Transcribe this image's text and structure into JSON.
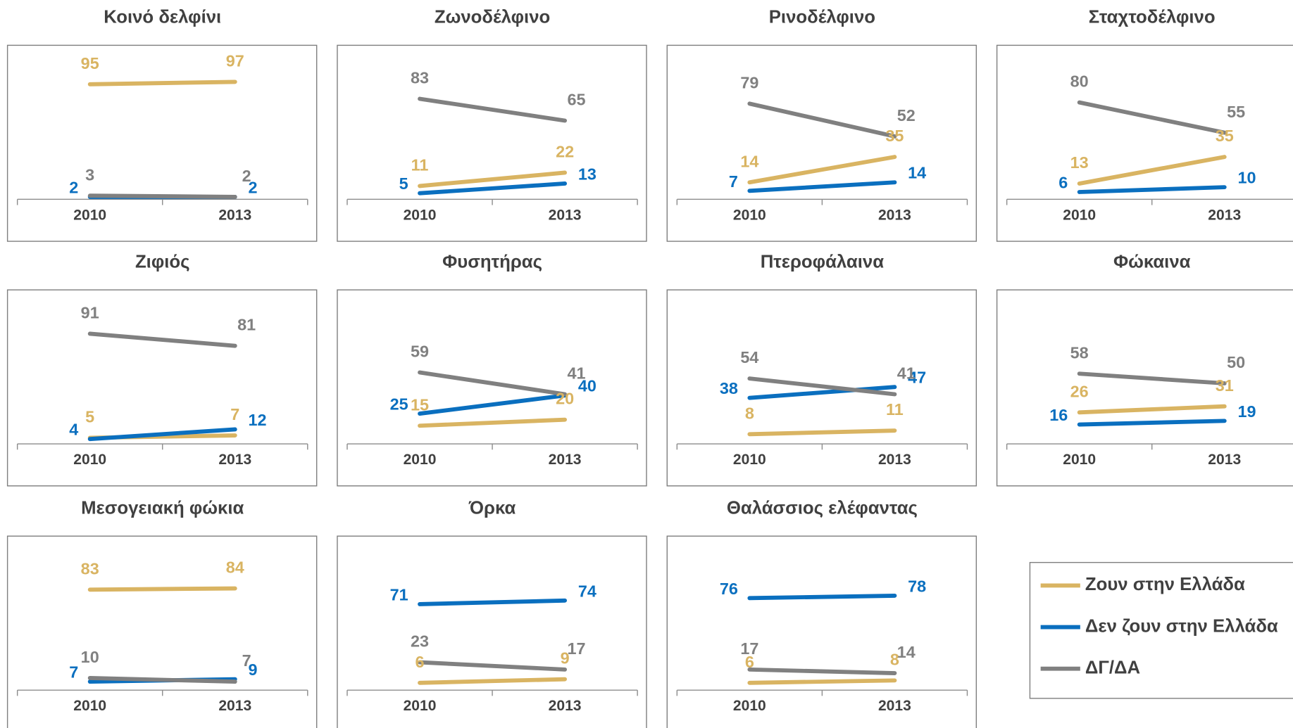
{
  "chart_data": [
    {
      "type": "line",
      "title": "Κοινό δελφίνι",
      "categories": [
        "2010",
        "2013"
      ],
      "ylim": [
        0,
        100
      ],
      "series": [
        {
          "name": "Ζουν στην Ελλάδα",
          "color": "#d9b462",
          "values": [
            95,
            97
          ]
        },
        {
          "name": "Δεν ζουν στην Ελλάδα",
          "color": "#0a6fbf",
          "values": [
            2,
            2
          ]
        },
        {
          "name": "ΔΓ/ΔΑ",
          "color": "#808080",
          "values": [
            3,
            2
          ]
        }
      ]
    },
    {
      "type": "line",
      "title": "Ζωνοδέλφινο",
      "categories": [
        "2010",
        "2013"
      ],
      "ylim": [
        0,
        100
      ],
      "series": [
        {
          "name": "Ζουν στην Ελλάδα",
          "color": "#d9b462",
          "values": [
            11,
            22
          ]
        },
        {
          "name": "Δεν ζουν στην Ελλάδα",
          "color": "#0a6fbf",
          "values": [
            5,
            13
          ]
        },
        {
          "name": "ΔΓ/ΔΑ",
          "color": "#808080",
          "values": [
            83,
            65
          ]
        }
      ]
    },
    {
      "type": "line",
      "title": "Ρινοδέλφινο",
      "categories": [
        "2010",
        "2013"
      ],
      "ylim": [
        0,
        100
      ],
      "series": [
        {
          "name": "Ζουν στην Ελλάδα",
          "color": "#d9b462",
          "values": [
            14,
            35
          ]
        },
        {
          "name": "Δεν ζουν στην Ελλάδα",
          "color": "#0a6fbf",
          "values": [
            7,
            14
          ]
        },
        {
          "name": "ΔΓ/ΔΑ",
          "color": "#808080",
          "values": [
            79,
            52
          ]
        }
      ]
    },
    {
      "type": "line",
      "title": "Σταχτοδέλφινο",
      "categories": [
        "2010",
        "2013"
      ],
      "ylim": [
        0,
        100
      ],
      "series": [
        {
          "name": "Ζουν στην Ελλάδα",
          "color": "#d9b462",
          "values": [
            13,
            35
          ]
        },
        {
          "name": "Δεν ζουν στην Ελλάδα",
          "color": "#0a6fbf",
          "values": [
            6,
            10
          ]
        },
        {
          "name": "ΔΓ/ΔΑ",
          "color": "#808080",
          "values": [
            80,
            55
          ]
        }
      ]
    },
    {
      "type": "line",
      "title": "Ζιφιός",
      "categories": [
        "2010",
        "2013"
      ],
      "ylim": [
        0,
        100
      ],
      "series": [
        {
          "name": "Ζουν στην Ελλάδα",
          "color": "#d9b462",
          "values": [
            5,
            7
          ]
        },
        {
          "name": "Δεν ζουν στην Ελλάδα",
          "color": "#0a6fbf",
          "values": [
            4,
            12
          ]
        },
        {
          "name": "ΔΓ/ΔΑ",
          "color": "#808080",
          "values": [
            91,
            81
          ]
        }
      ]
    },
    {
      "type": "line",
      "title": "Φυσητήρας",
      "categories": [
        "2010",
        "2013"
      ],
      "ylim": [
        0,
        100
      ],
      "series": [
        {
          "name": "Ζουν στην Ελλάδα",
          "color": "#d9b462",
          "values": [
            15,
            20
          ]
        },
        {
          "name": "Δεν ζουν στην Ελλάδα",
          "color": "#0a6fbf",
          "values": [
            25,
            40
          ]
        },
        {
          "name": "ΔΓ/ΔΑ",
          "color": "#808080",
          "values": [
            59,
            41
          ]
        }
      ]
    },
    {
      "type": "line",
      "title": "Πτεροφάλαινα",
      "categories": [
        "2010",
        "2013"
      ],
      "ylim": [
        0,
        100
      ],
      "series": [
        {
          "name": "Ζουν στην Ελλάδα",
          "color": "#d9b462",
          "values": [
            8,
            11
          ]
        },
        {
          "name": "Δεν ζουν στην Ελλάδα",
          "color": "#0a6fbf",
          "values": [
            38,
            47
          ]
        },
        {
          "name": "ΔΓ/ΔΑ",
          "color": "#808080",
          "values": [
            54,
            41
          ]
        }
      ]
    },
    {
      "type": "line",
      "title": "Φώκαινα",
      "categories": [
        "2010",
        "2013"
      ],
      "ylim": [
        0,
        100
      ],
      "series": [
        {
          "name": "Ζουν στην Ελλάδα",
          "color": "#d9b462",
          "values": [
            26,
            31
          ]
        },
        {
          "name": "Δεν ζουν στην Ελλάδα",
          "color": "#0a6fbf",
          "values": [
            16,
            19
          ]
        },
        {
          "name": "ΔΓ/ΔΑ",
          "color": "#808080",
          "values": [
            58,
            50
          ]
        }
      ]
    },
    {
      "type": "line",
      "title": "Μεσογειακή φώκια",
      "categories": [
        "2010",
        "2013"
      ],
      "ylim": [
        0,
        100
      ],
      "series": [
        {
          "name": "Ζουν στην Ελλάδα",
          "color": "#d9b462",
          "values": [
            83,
            84
          ]
        },
        {
          "name": "Δεν ζουν στην Ελλάδα",
          "color": "#0a6fbf",
          "values": [
            7,
            9
          ]
        },
        {
          "name": "ΔΓ/ΔΑ",
          "color": "#808080",
          "values": [
            10,
            7
          ]
        }
      ]
    },
    {
      "type": "line",
      "title": "Όρκα",
      "categories": [
        "2010",
        "2013"
      ],
      "ylim": [
        0,
        100
      ],
      "series": [
        {
          "name": "Ζουν στην Ελλάδα",
          "color": "#d9b462",
          "values": [
            6,
            9
          ]
        },
        {
          "name": "Δεν ζουν στην Ελλάδα",
          "color": "#0a6fbf",
          "values": [
            71,
            74
          ]
        },
        {
          "name": "ΔΓ/ΔΑ",
          "color": "#808080",
          "values": [
            23,
            17
          ]
        }
      ]
    },
    {
      "type": "line",
      "title": "Θαλάσσιος ελέφαντας",
      "categories": [
        "2010",
        "2013"
      ],
      "ylim": [
        0,
        100
      ],
      "series": [
        {
          "name": "Ζουν στην Ελλάδα",
          "color": "#d9b462",
          "values": [
            6,
            8
          ]
        },
        {
          "name": "Δεν ζουν στην Ελλάδα",
          "color": "#0a6fbf",
          "values": [
            76,
            78
          ]
        },
        {
          "name": "ΔΓ/ΔΑ",
          "color": "#808080",
          "values": [
            17,
            14
          ]
        }
      ]
    }
  ]
}
